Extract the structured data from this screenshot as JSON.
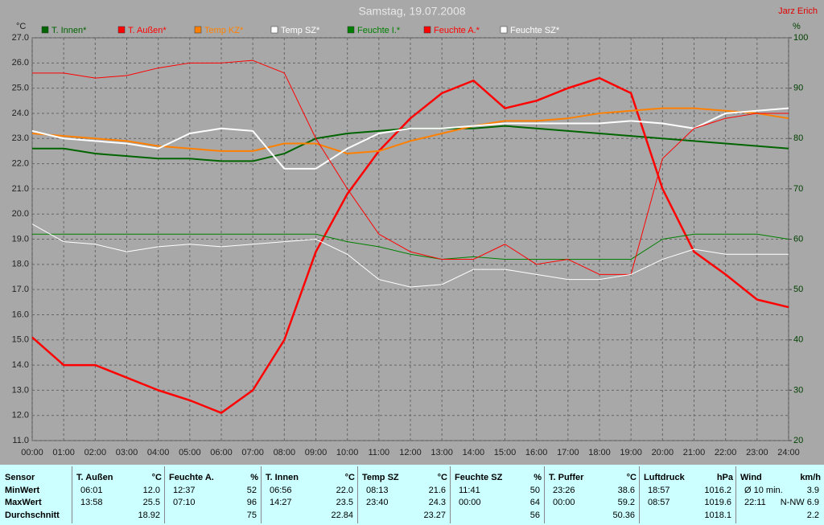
{
  "chart_data": {
    "type": "line",
    "title": "Samstag, 19.07.2008",
    "annotation": "Jarz Erich",
    "y_label": "°C",
    "y2_label": "%",
    "grid": true,
    "x": [
      0,
      1,
      2,
      3,
      4,
      5,
      6,
      7,
      8,
      9,
      10,
      11,
      12,
      13,
      14,
      15,
      16,
      17,
      18,
      19,
      20,
      21,
      22,
      23,
      24
    ],
    "xlim": [
      0,
      24
    ],
    "xticks": [
      {
        "value": 0,
        "label": "00:00"
      },
      {
        "value": 1,
        "label": "01:00"
      },
      {
        "value": 2,
        "label": "02:00"
      },
      {
        "value": 3,
        "label": "03:00"
      },
      {
        "value": 4,
        "label": "04:00"
      },
      {
        "value": 5,
        "label": "05:00"
      },
      {
        "value": 6,
        "label": "06:00"
      },
      {
        "value": 7,
        "label": "07:00"
      },
      {
        "value": 8,
        "label": "08:00"
      },
      {
        "value": 9,
        "label": "09:00"
      },
      {
        "value": 10,
        "label": "10:00"
      },
      {
        "value": 11,
        "label": "11:00"
      },
      {
        "value": 12,
        "label": "12:00"
      },
      {
        "value": 13,
        "label": "13:00"
      },
      {
        "value": 14,
        "label": "14:00"
      },
      {
        "value": 15,
        "label": "15:00"
      },
      {
        "value": 16,
        "label": "16:00"
      },
      {
        "value": 17,
        "label": "17:00"
      },
      {
        "value": 18,
        "label": "18:00"
      },
      {
        "value": 19,
        "label": "19:00"
      },
      {
        "value": 20,
        "label": "20:00"
      },
      {
        "value": 21,
        "label": "21:00"
      },
      {
        "value": 22,
        "label": "22:00"
      },
      {
        "value": 23,
        "label": "23:00"
      },
      {
        "value": 24,
        "label": "24:00"
      }
    ],
    "ylim": [
      11,
      27
    ],
    "yticks": [
      {
        "value": 11,
        "label": "11.0"
      },
      {
        "value": 12,
        "label": "12.0"
      },
      {
        "value": 13,
        "label": "13.0"
      },
      {
        "value": 14,
        "label": "14.0"
      },
      {
        "value": 15,
        "label": "15.0"
      },
      {
        "value": 16,
        "label": "16.0"
      },
      {
        "value": 17,
        "label": "17.0"
      },
      {
        "value": 18,
        "label": "18.0"
      },
      {
        "value": 19,
        "label": "19.0"
      },
      {
        "value": 20,
        "label": "20.0"
      },
      {
        "value": 21,
        "label": "21.0"
      },
      {
        "value": 22,
        "label": "22.0"
      },
      {
        "value": 23,
        "label": "23.0"
      },
      {
        "value": 24,
        "label": "24.0"
      },
      {
        "value": 25,
        "label": "25.0"
      },
      {
        "value": 26,
        "label": "26.0"
      },
      {
        "value": 27,
        "label": "27.0"
      }
    ],
    "y2lim": [
      20,
      100
    ],
    "y2ticks": [
      20,
      30,
      40,
      50,
      60,
      70,
      80,
      90,
      100
    ],
    "series": [
      {
        "name": "T. Innen*",
        "color": "#006400",
        "width": 2,
        "values": [
          22.6,
          22.6,
          22.4,
          22.3,
          22.2,
          22.2,
          22.1,
          22.1,
          22.4,
          23.0,
          23.2,
          23.3,
          23.4,
          23.4,
          23.4,
          23.5,
          23.4,
          23.3,
          23.2,
          23.1,
          23.0,
          22.9,
          22.8,
          22.7,
          22.6
        ]
      },
      {
        "name": "T. Außen*",
        "color": "#ff0000",
        "width": 2.5,
        "values": [
          15.1,
          14.0,
          14.0,
          13.5,
          13.0,
          12.6,
          12.1,
          13.0,
          15.0,
          18.5,
          20.8,
          22.5,
          23.8,
          24.8,
          25.3,
          24.2,
          24.5,
          25.0,
          25.4,
          24.8,
          21.0,
          18.5,
          17.6,
          16.6,
          16.3
        ]
      },
      {
        "name": "Temp KZ*",
        "color": "#ff8000",
        "width": 2,
        "values": [
          23.2,
          23.1,
          23.0,
          22.9,
          22.7,
          22.6,
          22.5,
          22.5,
          22.8,
          22.8,
          22.4,
          22.5,
          22.9,
          23.2,
          23.5,
          23.7,
          23.7,
          23.8,
          24.0,
          24.1,
          24.2,
          24.2,
          24.1,
          24.0,
          23.8
        ]
      },
      {
        "name": "Temp SZ*",
        "color": "#ffffff",
        "width": 2,
        "values": [
          23.3,
          23.0,
          22.9,
          22.8,
          22.6,
          23.2,
          23.4,
          23.3,
          21.8,
          21.8,
          22.6,
          23.2,
          23.4,
          23.4,
          23.5,
          23.6,
          23.6,
          23.6,
          23.6,
          23.7,
          23.6,
          23.4,
          24.0,
          24.1,
          24.2
        ]
      },
      {
        "name": "Feuchte I.*",
        "color": "#008000",
        "width": 1,
        "axis": "y2",
        "values": [
          61,
          61,
          61,
          61,
          61,
          61,
          61,
          61,
          61,
          61,
          59.5,
          58.5,
          57,
          56,
          56.5,
          56,
          56,
          56,
          56,
          56,
          60,
          61,
          61,
          61,
          60
        ]
      },
      {
        "name": "Feuchte A.*",
        "color": "#ff0000",
        "width": 1,
        "axis": "y2",
        "values": [
          93,
          93,
          92,
          92.5,
          94,
          95,
          95,
          95.5,
          93,
          80,
          70,
          61,
          57.5,
          56,
          56,
          59,
          55,
          56,
          53,
          53,
          76,
          82,
          84,
          85,
          85
        ]
      },
      {
        "name": "Feuchte SZ*",
        "color": "#ffffff",
        "width": 1,
        "axis": "y2",
        "values": [
          63,
          59.5,
          59,
          57.5,
          58.5,
          59,
          58.5,
          59,
          59.5,
          60,
          57,
          52,
          50.5,
          51,
          54,
          54,
          53,
          52,
          52,
          53,
          56,
          58,
          57,
          57,
          57
        ]
      }
    ]
  },
  "table": {
    "sensor_header": "Sensor",
    "row_labels": [
      "MinWert",
      "MaxWert",
      "Durchschnitt"
    ],
    "columns": [
      {
        "name": "T. Außen",
        "unit": "°C",
        "rows": [
          {
            "time": "06:01",
            "value": "12.0"
          },
          {
            "time": "13:58",
            "value": "25.5"
          },
          {
            "value": "18.92"
          }
        ]
      },
      {
        "name": "Feuchte A.",
        "unit": "%",
        "rows": [
          {
            "time": "12:37",
            "value": "52"
          },
          {
            "time": "07:10",
            "value": "96"
          },
          {
            "value": "75"
          }
        ]
      },
      {
        "name": "T. Innen",
        "unit": "°C",
        "rows": [
          {
            "time": "06:56",
            "value": "22.0"
          },
          {
            "time": "14:27",
            "value": "23.5"
          },
          {
            "value": "22.84"
          }
        ]
      },
      {
        "name": "Temp SZ",
        "unit": "°C",
        "rows": [
          {
            "time": "08:13",
            "value": "21.6"
          },
          {
            "time": "23:40",
            "value": "24.3"
          },
          {
            "value": "23.27"
          }
        ]
      },
      {
        "name": "Feuchte SZ",
        "unit": "%",
        "rows": [
          {
            "time": "11:41",
            "value": "50"
          },
          {
            "time": "00:00",
            "value": "64"
          },
          {
            "value": "56"
          }
        ]
      },
      {
        "name": "T. Puffer",
        "unit": "°C",
        "rows": [
          {
            "time": "23:26",
            "value": "38.6"
          },
          {
            "time": "00:00",
            "value": "59.2"
          },
          {
            "value": "50.36"
          }
        ]
      },
      {
        "name": "Luftdruck",
        "unit": "hPa",
        "rows": [
          {
            "time": "18:57",
            "value": "1016.2"
          },
          {
            "time": "08:57",
            "value": "1019.6"
          },
          {
            "value": "1018.1"
          }
        ]
      },
      {
        "name": "Wind",
        "unit": "km/h",
        "rows": [
          {
            "time": "Ø 10 min.",
            "value": "3.9"
          },
          {
            "time": "22:11",
            "value": "N-NW 6.9"
          },
          {
            "value": "2.2"
          }
        ]
      }
    ]
  }
}
